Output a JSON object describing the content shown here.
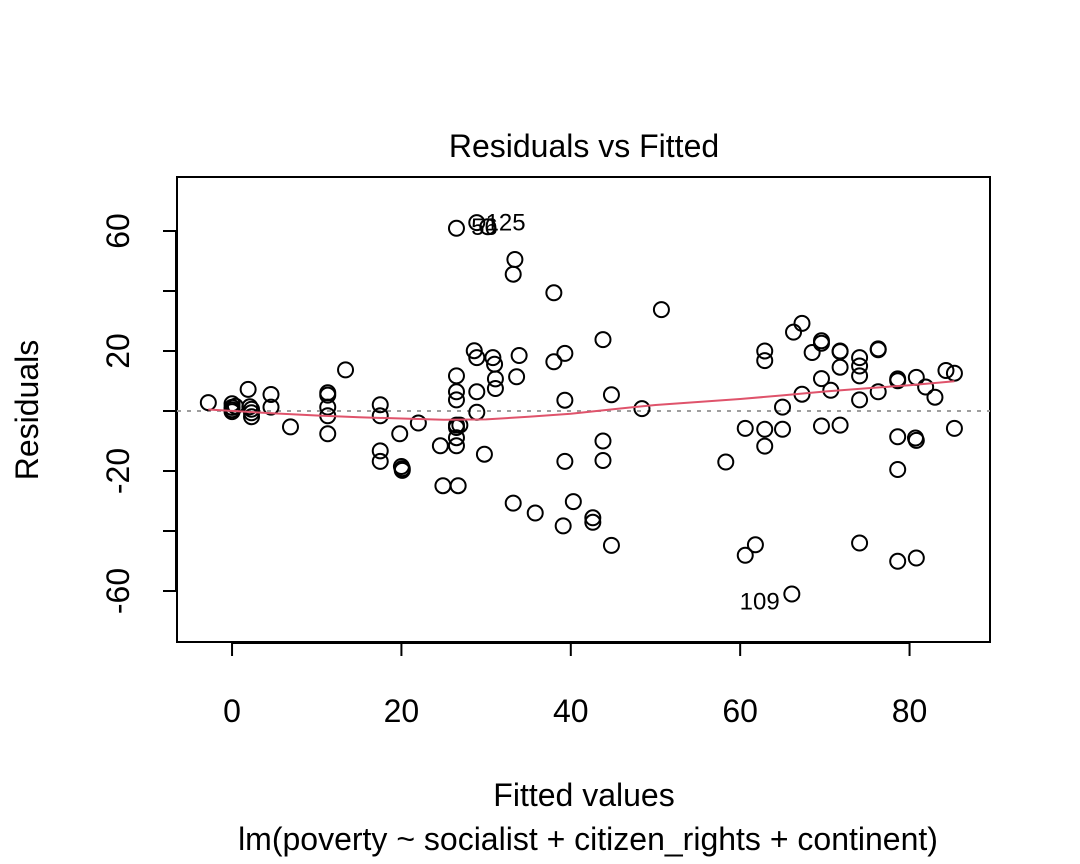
{
  "chart_data": {
    "type": "scatter",
    "title": "Residuals vs Fitted",
    "xlabel": "Fitted values",
    "ylabel": "Residuals",
    "subtitle": "lm(poverty ~ socialist + citizen_rights + continent)",
    "xlim": [
      -6.5,
      89.5
    ],
    "ylim": [
      -77,
      78
    ],
    "x_ticks": [
      0,
      20,
      40,
      60,
      80
    ],
    "y_ticks": [
      -60,
      -40,
      -20,
      0,
      20,
      40,
      60
    ],
    "y_tick_labels": [
      "-60",
      "",
      "-20",
      "",
      "20",
      "",
      "60"
    ],
    "reference_line_y": 0,
    "point_color": "#000000",
    "smooth_color": "#DF536B",
    "reference_color": "#9E9E9E",
    "points": [
      [
        -2.8,
        2.8
      ],
      [
        0.0,
        2.4
      ],
      [
        0.0,
        1.2
      ],
      [
        0.0,
        0.4
      ],
      [
        0.0,
        -0.2
      ],
      [
        0.4,
        1.6
      ],
      [
        1.9,
        7.2
      ],
      [
        2.1,
        1.4
      ],
      [
        2.3,
        0.6
      ],
      [
        2.3,
        -0.6
      ],
      [
        2.3,
        -1.9
      ],
      [
        4.6,
        5.5
      ],
      [
        4.6,
        1.3
      ],
      [
        6.9,
        -5.3
      ],
      [
        11.3,
        6.1
      ],
      [
        11.3,
        5.3
      ],
      [
        11.3,
        1.3
      ],
      [
        11.3,
        -1.6
      ],
      [
        11.3,
        -7.6
      ],
      [
        13.4,
        13.7
      ],
      [
        17.5,
        2.1
      ],
      [
        17.5,
        -1.6
      ],
      [
        17.5,
        -13.3
      ],
      [
        17.5,
        -16.8
      ],
      [
        19.8,
        -7.6
      ],
      [
        20.0,
        -18.5
      ],
      [
        20.1,
        -19.2
      ],
      [
        20.1,
        -19.8
      ],
      [
        22.0,
        -4.0
      ],
      [
        24.6,
        -11.6
      ],
      [
        24.9,
        -24.9
      ],
      [
        26.5,
        60.9
      ],
      [
        26.5,
        11.7
      ],
      [
        26.5,
        6.4
      ],
      [
        26.5,
        3.7
      ],
      [
        26.5,
        -4.7
      ],
      [
        26.5,
        -5.5
      ],
      [
        26.5,
        -8.9
      ],
      [
        26.5,
        -11.6
      ],
      [
        26.7,
        -24.9
      ],
      [
        26.9,
        -4.7
      ],
      [
        28.6,
        20.1
      ],
      [
        28.9,
        62.8
      ],
      [
        28.9,
        17.8
      ],
      [
        28.9,
        6.4
      ],
      [
        28.9,
        -0.4
      ],
      [
        29.8,
        -14.4
      ],
      [
        30.2,
        61.4
      ],
      [
        30.8,
        17.8
      ],
      [
        31.0,
        15.6
      ],
      [
        31.1,
        10.7
      ],
      [
        31.1,
        7.5
      ],
      [
        33.2,
        -30.7
      ],
      [
        33.2,
        45.6
      ],
      [
        33.4,
        50.5
      ],
      [
        33.6,
        11.4
      ],
      [
        33.9,
        18.5
      ],
      [
        35.8,
        -34.0
      ],
      [
        38.0,
        39.4
      ],
      [
        38.0,
        16.4
      ],
      [
        39.1,
        -38.3
      ],
      [
        39.3,
        19.2
      ],
      [
        39.3,
        3.6
      ],
      [
        39.3,
        -16.8
      ],
      [
        40.3,
        -30.2
      ],
      [
        42.6,
        -37.1
      ],
      [
        42.6,
        -35.6
      ],
      [
        43.8,
        23.8
      ],
      [
        43.8,
        -10.0
      ],
      [
        43.8,
        -16.5
      ],
      [
        44.8,
        5.4
      ],
      [
        44.8,
        -44.8
      ],
      [
        48.4,
        0.8
      ],
      [
        50.7,
        33.8
      ],
      [
        58.3,
        -17.0
      ],
      [
        60.6,
        -5.8
      ],
      [
        60.6,
        -48.1
      ],
      [
        61.8,
        -44.6
      ],
      [
        62.9,
        20.0
      ],
      [
        62.9,
        16.8
      ],
      [
        62.9,
        -6.1
      ],
      [
        62.9,
        -11.7
      ],
      [
        65.0,
        1.3
      ],
      [
        65.0,
        -6.1
      ],
      [
        66.1,
        -61.0
      ],
      [
        66.3,
        26.3
      ],
      [
        67.3,
        5.6
      ],
      [
        67.3,
        29.2
      ],
      [
        68.5,
        19.5
      ],
      [
        69.6,
        23.4
      ],
      [
        69.6,
        22.6
      ],
      [
        69.6,
        10.8
      ],
      [
        69.6,
        -5.0
      ],
      [
        70.7,
        6.9
      ],
      [
        71.8,
        20.0
      ],
      [
        71.8,
        19.8
      ],
      [
        71.8,
        14.6
      ],
      [
        71.8,
        -4.7
      ],
      [
        74.1,
        17.8
      ],
      [
        74.1,
        15.0
      ],
      [
        74.1,
        11.7
      ],
      [
        74.1,
        3.7
      ],
      [
        74.1,
        -44.0
      ],
      [
        76.3,
        20.7
      ],
      [
        76.3,
        20.4
      ],
      [
        76.3,
        6.4
      ],
      [
        78.6,
        10.7
      ],
      [
        78.6,
        10.1
      ],
      [
        78.6,
        -8.6
      ],
      [
        78.6,
        -19.5
      ],
      [
        78.6,
        -50.1
      ],
      [
        80.7,
        -9.0
      ],
      [
        80.8,
        -9.8
      ],
      [
        80.8,
        11.2
      ],
      [
        80.8,
        -49.0
      ],
      [
        81.9,
        8.0
      ],
      [
        83.0,
        4.6
      ],
      [
        84.3,
        13.5
      ],
      [
        85.3,
        12.6
      ],
      [
        85.3,
        -5.8
      ]
    ],
    "smooth_line": [
      [
        -2.8,
        0.5
      ],
      [
        5,
        -0.8
      ],
      [
        10,
        -1.5
      ],
      [
        15,
        -2.1
      ],
      [
        20,
        -2.5
      ],
      [
        25,
        -2.9
      ],
      [
        30,
        -2.8
      ],
      [
        35,
        -1.9
      ],
      [
        40,
        -0.9
      ],
      [
        45,
        0.6
      ],
      [
        50,
        2.0
      ],
      [
        55,
        3.0
      ],
      [
        60,
        4.0
      ],
      [
        65,
        5.2
      ],
      [
        70,
        6.5
      ],
      [
        75,
        7.6
      ],
      [
        80,
        8.6
      ],
      [
        85.3,
        9.9
      ]
    ],
    "annotations": [
      {
        "text": "125",
        "x": 32.3,
        "y": 62.8
      },
      {
        "text": "56",
        "x": 29.8,
        "y": 61.4
      },
      {
        "text": "109",
        "x": 62.3,
        "y": -63.5
      }
    ]
  }
}
